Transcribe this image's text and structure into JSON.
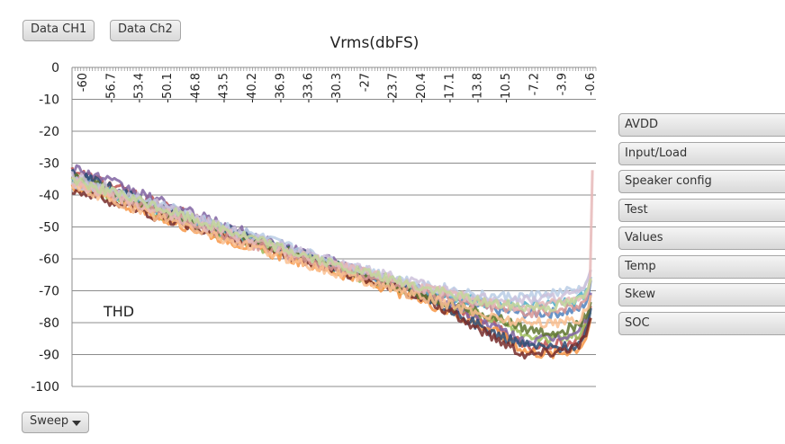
{
  "buttons": {
    "data_ch1": "Data CH1",
    "data_ch2": "Data Ch2",
    "sweep": "Sweep"
  },
  "side_buttons": [
    "AVDD",
    "Input/Load",
    "Speaker config",
    "Test",
    "Values",
    "Temp",
    "Skew",
    "SOC"
  ],
  "chart_data": {
    "type": "line",
    "title": "Vrms(dbFS)",
    "annotation": "THD",
    "ylim": [
      -100,
      0
    ],
    "yticks": [
      0,
      -10,
      -20,
      -30,
      -40,
      -50,
      -60,
      -70,
      -80,
      -90,
      -100
    ],
    "xlim": [
      -60,
      0
    ],
    "xticks": [
      "-60",
      "-56.7",
      "-53.4",
      "-50.1",
      "-46.8",
      "-43.5",
      "-40.2",
      "-36.9",
      "-33.6",
      "-30.3",
      "-27",
      "-23.7",
      "-20.4",
      "-17.1",
      "-13.8",
      "-10.5",
      "-7.2",
      "-3.9",
      "-0.6"
    ],
    "grid": "horizontal",
    "series": [
      {
        "color": "#4f81bd",
        "x": [
          -60,
          -50,
          -40,
          -30,
          -20,
          -12,
          -8,
          -5,
          -2,
          -1,
          -0.6
        ],
        "y": [
          -34,
          -44,
          -54,
          -62,
          -70,
          -76,
          -77,
          -77,
          -76,
          -73,
          -68
        ]
      },
      {
        "color": "#c0504d",
        "x": [
          -60,
          -50,
          -40,
          -30,
          -20,
          -12,
          -8,
          -5,
          -2,
          -1,
          -0.6
        ],
        "y": [
          -32,
          -43,
          -53,
          -62,
          -71,
          -80,
          -88,
          -87,
          -86,
          -80,
          -75
        ]
      },
      {
        "color": "#9bbb59",
        "x": [
          -60,
          -50,
          -40,
          -30,
          -20,
          -12,
          -8,
          -5,
          -2,
          -1,
          -0.6
        ],
        "y": [
          -36,
          -46,
          -55,
          -63,
          -72,
          -79,
          -84,
          -85,
          -84,
          -80,
          -76
        ]
      },
      {
        "color": "#8064a2",
        "x": [
          -60,
          -50,
          -40,
          -30,
          -20,
          -12,
          -8,
          -5,
          -2,
          -1,
          -0.6
        ],
        "y": [
          -31,
          -42,
          -52,
          -61,
          -70,
          -81,
          -86,
          -85,
          -83,
          -78,
          -72
        ]
      },
      {
        "color": "#4bacc6",
        "x": [
          -60,
          -50,
          -40,
          -30,
          -20,
          -12,
          -8,
          -5,
          -2,
          -1,
          -0.6
        ],
        "y": [
          -35,
          -45,
          -54,
          -62,
          -70,
          -74,
          -75,
          -74,
          -73,
          -70,
          -66
        ]
      },
      {
        "color": "#f79646",
        "x": [
          -60,
          -50,
          -40,
          -30,
          -20,
          -12,
          -8,
          -5,
          -2,
          -1,
          -0.6
        ],
        "y": [
          -37,
          -47,
          -56,
          -64,
          -73,
          -82,
          -89,
          -90,
          -88,
          -84,
          -78
        ]
      },
      {
        "color": "#2c4d75",
        "x": [
          -60,
          -50,
          -40,
          -30,
          -20,
          -12,
          -8,
          -5,
          -2,
          -1,
          -0.6
        ],
        "y": [
          -33,
          -44,
          -53,
          -62,
          -71,
          -83,
          -87,
          -88,
          -87,
          -83,
          -77
        ]
      },
      {
        "color": "#772c2a",
        "x": [
          -60,
          -50,
          -40,
          -30,
          -20,
          -12,
          -8,
          -5,
          -2,
          -1,
          -0.6
        ],
        "y": [
          -38,
          -47,
          -55,
          -63,
          -72,
          -84,
          -90,
          -89,
          -87,
          -84,
          -79
        ]
      },
      {
        "color": "#5f7530",
        "x": [
          -60,
          -50,
          -40,
          -30,
          -20,
          -12,
          -8,
          -5,
          -2,
          -1,
          -0.6
        ],
        "y": [
          -34,
          -45,
          -54,
          -62,
          -71,
          -78,
          -82,
          -83,
          -81,
          -77,
          -73
        ]
      },
      {
        "color": "#b9cde5",
        "x": [
          -60,
          -50,
          -40,
          -30,
          -20,
          -12,
          -8,
          -5,
          -2,
          -1,
          -0.6
        ],
        "y": [
          -36,
          -43,
          -52,
          -61,
          -68,
          -72,
          -72,
          -71,
          -70,
          -68,
          -62
        ]
      },
      {
        "color": "#d99694",
        "x": [
          -60,
          -50,
          -40,
          -30,
          -20,
          -12,
          -8,
          -5,
          -2,
          -1,
          -0.6
        ],
        "y": [
          -35,
          -45,
          -55,
          -63,
          -70,
          -75,
          -77,
          -76,
          -75,
          -72,
          -67
        ]
      },
      {
        "color": "#ccc1da",
        "x": [
          -60,
          -50,
          -40,
          -30,
          -20,
          -12,
          -8,
          -5,
          -2,
          -1,
          -0.6
        ],
        "y": [
          -34,
          -43,
          -53,
          -61,
          -68,
          -73,
          -73,
          -72,
          -71,
          -69,
          -63
        ]
      },
      {
        "color": "#fac090",
        "x": [
          -60,
          -50,
          -40,
          -30,
          -20,
          -12,
          -8,
          -5,
          -2,
          -1,
          -0.6
        ],
        "y": [
          -37,
          -47,
          -56,
          -64,
          -72,
          -78,
          -80,
          -80,
          -79,
          -76,
          -70
        ]
      },
      {
        "color": "#e6b9b8",
        "x": [
          -60,
          -50,
          -40,
          -30,
          -20,
          -12,
          -8,
          -5,
          -2,
          -1,
          -0.6,
          -0.4
        ],
        "y": [
          -36,
          -45,
          -54,
          -62,
          -69,
          -74,
          -75,
          -74,
          -73,
          -70,
          -65,
          -33
        ]
      },
      {
        "color": "#c3d69b",
        "x": [
          -60,
          -50,
          -40,
          -30,
          -20,
          -12,
          -8,
          -5,
          -2,
          -1,
          -0.6
        ],
        "y": [
          -35,
          -44,
          -53,
          -62,
          -69,
          -74,
          -75,
          -75,
          -73,
          -71,
          -66
        ]
      }
    ]
  }
}
